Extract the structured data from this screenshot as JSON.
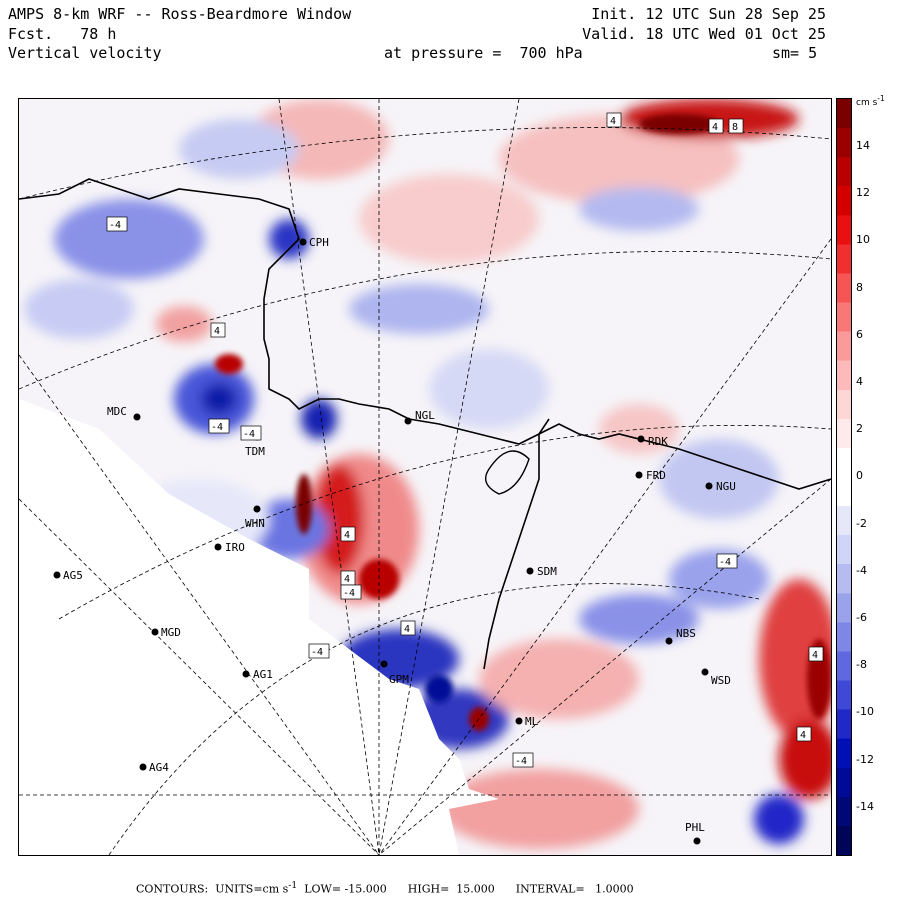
{
  "header": {
    "title": "AMPS 8-km WRF -- Ross-Beardmore Window",
    "forecast": "Fcst.   78 h",
    "field": "Vertical velocity",
    "init": "Init. 12 UTC Sun 28 Sep 25",
    "valid": "Valid. 18 UTC Wed 01 Oct 25",
    "pressure": "at pressure =  700 hPa",
    "smoothing": "sm= 5"
  },
  "colorbar": {
    "units": "cm s",
    "units_sup": "-1",
    "labels": [
      "14",
      "12",
      "10",
      "8",
      "6",
      "4",
      "2",
      "0",
      "-2",
      "-4",
      "-6",
      "-8",
      "-10",
      "-12",
      "-14"
    ],
    "colors": [
      "#7a0000",
      "#9a0000",
      "#b80000",
      "#d40000",
      "#e81010",
      "#f03030",
      "#f55555",
      "#f87878",
      "#fa9a9a",
      "#fcbaba",
      "#fdd6d6",
      "#feeaea",
      "#ffffff",
      "#ffffff",
      "#e6e8fa",
      "#d0d4f6",
      "#b6bcf1",
      "#9aa2ec",
      "#7e86e6",
      "#6068e0",
      "#4048d6",
      "#2028c8",
      "#0010b4",
      "#000a96",
      "#000878",
      "#00055a"
    ]
  },
  "stations": [
    {
      "name": "MDC"
    },
    {
      "name": "NGL"
    },
    {
      "name": "TDM"
    },
    {
      "name": "IRO"
    },
    {
      "name": "WHN"
    },
    {
      "name": "AG5"
    },
    {
      "name": "MGD"
    },
    {
      "name": "AG1"
    },
    {
      "name": "AG4"
    },
    {
      "name": "SDM"
    },
    {
      "name": "FRD"
    },
    {
      "name": "RDK"
    },
    {
      "name": "NGU"
    },
    {
      "name": "NBS"
    },
    {
      "name": "WSD"
    },
    {
      "name": "CPH"
    },
    {
      "name": "GPM"
    },
    {
      "name": "ML"
    },
    {
      "name": "PHL"
    }
  ],
  "contour_labels": [
    "-4",
    "-4",
    "-4",
    "4",
    "4",
    "4",
    "4",
    "8",
    "-4",
    "4",
    "-4",
    "4",
    "-4",
    "4",
    "-4",
    "4"
  ],
  "footer": {
    "contours_label": "CONTOURS:",
    "units_label": "UNITS=cm s",
    "units_sup": "-1",
    "low": "LOW= -15.000",
    "high": "HIGH=  15.000",
    "interval": "INTERVAL=   1.0000"
  }
}
